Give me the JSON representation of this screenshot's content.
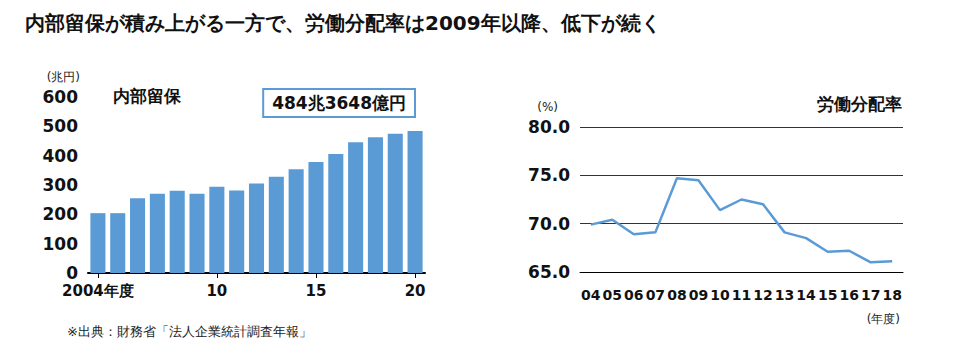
{
  "title": "内部留保が積み上がる一方で、労働分配率は2009年以降、低下が続く",
  "source": "※出典：財務省「法人企業統計調査年報」",
  "chart_data": [
    {
      "type": "bar",
      "title": "内部留保",
      "ylabel": "(兆円)",
      "categories": [
        "2004年度",
        null,
        null,
        null,
        null,
        null,
        "10",
        null,
        null,
        null,
        null,
        "15",
        null,
        null,
        null,
        null,
        "20"
      ],
      "values": [
        204,
        204,
        255,
        270,
        280,
        270,
        294,
        281,
        305,
        328,
        354,
        378,
        406,
        446,
        463,
        475,
        484.3648
      ],
      "color": "#5b9bd5",
      "ylim": [
        0,
        600
      ],
      "yticks": [
        0,
        100,
        200,
        300,
        400,
        500,
        600
      ],
      "grid": false,
      "annotation": "484兆3648億円"
    },
    {
      "type": "line",
      "title": "労働分配率",
      "ylabel": "(%)",
      "xlabel": "(年度)",
      "categories": [
        "04",
        "05",
        "06",
        "07",
        "08",
        "09",
        "10",
        "11",
        "12",
        "13",
        "14",
        "15",
        "16",
        "17",
        "18"
      ],
      "values": [
        69.9,
        70.4,
        68.9,
        69.1,
        74.7,
        74.5,
        71.4,
        72.5,
        72.0,
        69.1,
        68.5,
        67.1,
        67.2,
        66.0,
        66.1
      ],
      "color": "#5b9bd5",
      "ylim": [
        65,
        80
      ],
      "yticks": [
        {
          "value": 65,
          "label": "65.0"
        },
        {
          "value": 70,
          "label": "70.0"
        },
        {
          "value": 75,
          "label": "75.0"
        },
        {
          "value": 80,
          "label": "80.0"
        }
      ],
      "grid": true
    }
  ]
}
